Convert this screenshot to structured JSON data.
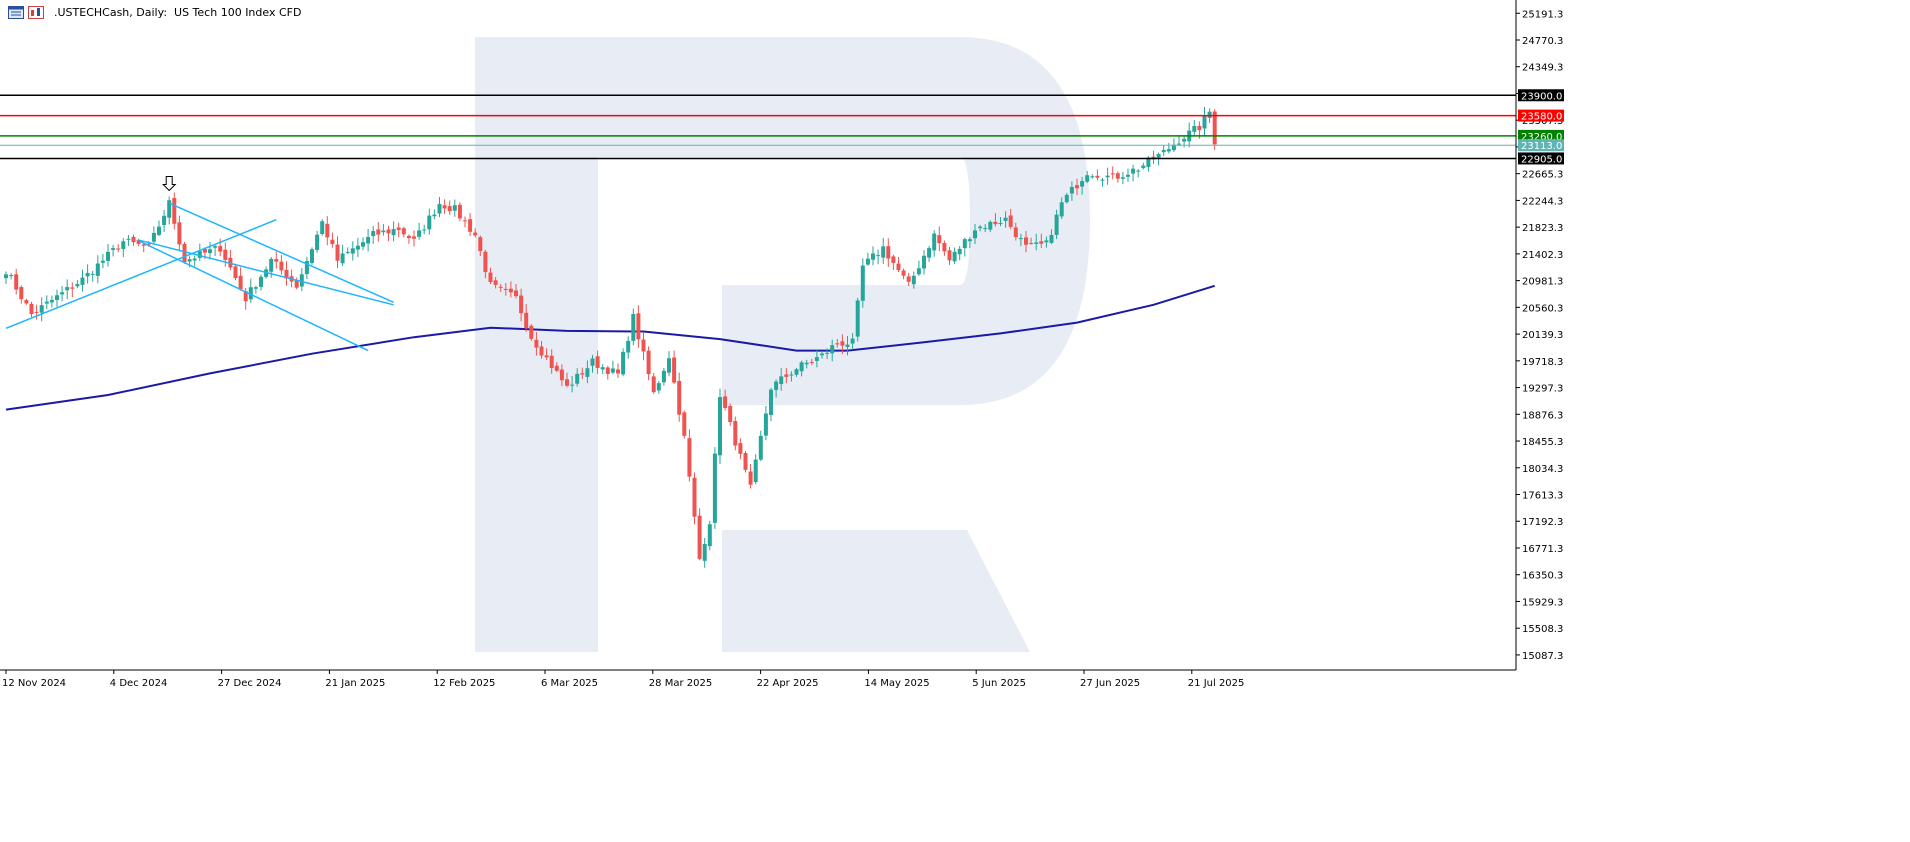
{
  "header": {
    "symbol": ".USTECHCash",
    "timeframe": "Daily:",
    "description": "US Tech 100 Index CFD"
  },
  "colors": {
    "bull": "#26a69a",
    "bear": "#ef5350",
    "ma": "#1a1aa6",
    "channel": "#1eb4ff",
    "resistance": "#ff0000",
    "support": "#008000",
    "level_black": "#000000",
    "current_price": "#5fb4b4",
    "watermark": "#e8edf5"
  },
  "chart_data": {
    "type": "candlestick",
    "title": "",
    "ylim": [
      14850,
      25400
    ],
    "y_ticks": [
      "25191.3",
      "24770.3",
      "24349.3",
      "23928.3",
      "23507.3",
      "23086.3",
      "22665.3",
      "22244.3",
      "21823.3",
      "21402.3",
      "20981.3",
      "20560.3",
      "20139.3",
      "19718.3",
      "19297.3",
      "18876.3",
      "18455.3",
      "18034.3",
      "17613.3",
      "17192.3",
      "16771.3",
      "16350.3",
      "15929.3",
      "15508.3",
      "15087.3"
    ],
    "x_ticks": [
      "12 Nov 2024",
      "4 Dec 2024",
      "27 Dec 2024",
      "21 Jan 2025",
      "12 Feb 2025",
      "6 Mar 2025",
      "28 Mar 2025",
      "22 Apr 2025",
      "14 May 2025",
      "5 Jun 2025",
      "27 Jun 2025",
      "21 Jul 2025"
    ],
    "price_path": [
      [
        0,
        21150
      ],
      [
        5,
        20450
      ],
      [
        15,
        21000
      ],
      [
        23,
        21600
      ],
      [
        28,
        21500
      ],
      [
        32,
        22200
      ],
      [
        35,
        21300
      ],
      [
        42,
        21500
      ],
      [
        47,
        20700
      ],
      [
        52,
        21300
      ],
      [
        57,
        20900
      ],
      [
        62,
        21900
      ],
      [
        65,
        21300
      ],
      [
        72,
        21700
      ],
      [
        77,
        21800
      ],
      [
        80,
        21600
      ],
      [
        85,
        22200
      ],
      [
        88,
        22100
      ],
      [
        92,
        21700
      ],
      [
        95,
        20900
      ],
      [
        100,
        20700
      ],
      [
        103,
        20100
      ],
      [
        110,
        19300
      ],
      [
        115,
        19700
      ],
      [
        120,
        19500
      ],
      [
        123,
        20400
      ],
      [
        127,
        19200
      ],
      [
        130,
        19800
      ],
      [
        133,
        18500
      ],
      [
        136,
        16600
      ],
      [
        138,
        17200
      ],
      [
        140,
        19200
      ],
      [
        142,
        18700
      ],
      [
        146,
        17700
      ],
      [
        150,
        19300
      ],
      [
        155,
        19600
      ],
      [
        160,
        19800
      ],
      [
        163,
        20000
      ],
      [
        166,
        20000
      ],
      [
        168,
        21200
      ],
      [
        172,
        21500
      ],
      [
        177,
        20900
      ],
      [
        182,
        21700
      ],
      [
        185,
        21300
      ],
      [
        190,
        21800
      ],
      [
        196,
        21950
      ],
      [
        200,
        21500
      ],
      [
        204,
        21550
      ],
      [
        207,
        22200
      ],
      [
        212,
        22700
      ],
      [
        217,
        22600
      ],
      [
        222,
        22750
      ],
      [
        227,
        23000
      ],
      [
        230,
        23200
      ],
      [
        234,
        23400
      ],
      [
        236,
        23640
      ],
      [
        237,
        23180
      ]
    ],
    "moving_average": [
      [
        0,
        18950
      ],
      [
        20,
        19180
      ],
      [
        40,
        19520
      ],
      [
        60,
        19830
      ],
      [
        80,
        20090
      ],
      [
        95,
        20240
      ],
      [
        110,
        20190
      ],
      [
        125,
        20180
      ],
      [
        140,
        20060
      ],
      [
        155,
        19880
      ],
      [
        165,
        19880
      ],
      [
        180,
        20010
      ],
      [
        195,
        20150
      ],
      [
        210,
        20320
      ],
      [
        225,
        20600
      ],
      [
        237,
        20900
      ]
    ],
    "current_price": 23113.0,
    "levels": [
      {
        "label": "23900.0",
        "value": 23900.0,
        "role": "level_black"
      },
      {
        "label": "23580.0",
        "value": 23580.0,
        "role": "resistance"
      },
      {
        "label": "23260.0",
        "value": 23260.0,
        "role": "support"
      },
      {
        "label": "23113.0",
        "value": 23113.0,
        "role": "current_price"
      },
      {
        "label": "22905.0",
        "value": 22905.0,
        "role": "level_black"
      }
    ],
    "trendlines": [
      {
        "from": [
          0,
          20230
        ],
        "to": [
          53,
          21940
        ]
      },
      {
        "from": [
          26,
          21620
        ],
        "to": [
          76,
          20600
        ]
      },
      {
        "from": [
          32,
          22200
        ],
        "to": [
          76,
          20640
        ]
      },
      {
        "from": [
          26,
          21610
        ],
        "to": [
          71,
          19880
        ]
      }
    ],
    "annotations": [
      {
        "type": "arrow-down",
        "index": 32,
        "value": 22400
      }
    ]
  }
}
